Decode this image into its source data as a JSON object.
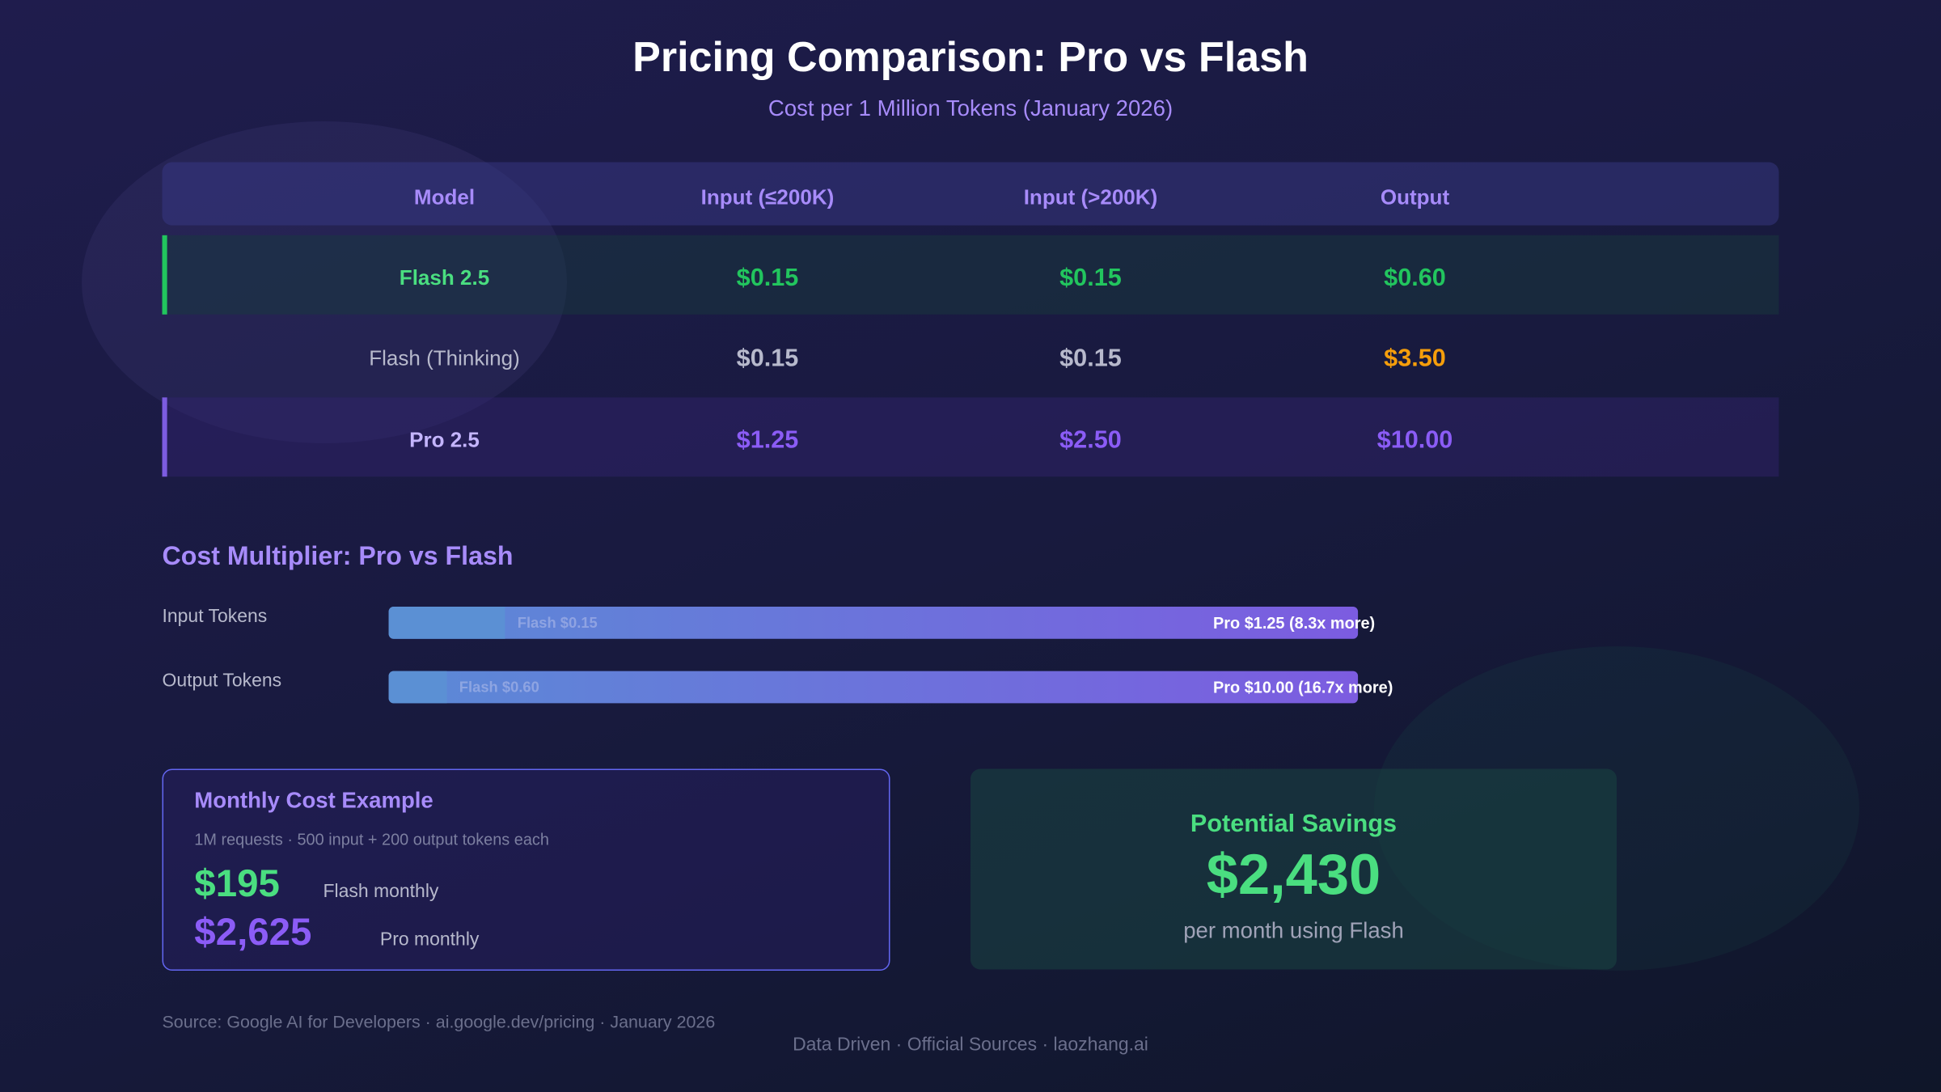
{
  "header": {
    "title": "Pricing Comparison: Pro vs Flash",
    "subtitle": "Cost per 1 Million Tokens (January 2026)"
  },
  "table": {
    "columns": [
      "Model",
      "Input (≤200K)",
      "Input (>200K)",
      "Output"
    ],
    "rows": [
      [
        "Flash 2.5",
        "$0.15",
        "$0.15",
        "$0.60"
      ],
      [
        "Flash (Thinking)",
        "$0.15",
        "$0.15",
        "$3.50"
      ],
      [
        "Pro 2.5",
        "$1.25",
        "$2.50",
        "$10.00"
      ]
    ]
  },
  "multiplier": {
    "title": "Cost Multiplier: Pro vs Flash",
    "rows": [
      {
        "label": "Input Tokens",
        "flash_label": "Flash $0.15",
        "flash_value": 0.15,
        "pro_label": "Pro $1.25 (8.3x more)",
        "pro_value": 1.25
      },
      {
        "label": "Output Tokens",
        "flash_label": "Flash $0.60",
        "flash_value": 0.6,
        "pro_label": "Pro $10.00 (16.7x more)",
        "pro_value": 10
      }
    ]
  },
  "monthly": {
    "title": "Monthly Cost Example",
    "subtitle": "1M requests · 500 input + 200 output tokens each",
    "flash_amount": "$195",
    "flash_label": "Flash monthly",
    "pro_amount": "$2,625",
    "pro_label": "Pro monthly"
  },
  "savings": {
    "title": "Potential Savings",
    "amount": "$2,430",
    "caption": "per month using Flash"
  },
  "source": "Source: Google AI for Developers · ai.google.dev/pricing · January 2026",
  "footer": "Data Driven · Official Sources · laozhang.ai"
}
